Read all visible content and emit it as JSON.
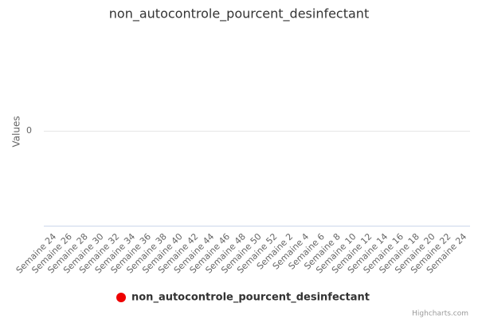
{
  "chart_data": {
    "type": "line",
    "title": "non_autocontrole_pourcent_desinfectant",
    "y_axis_label": "Values",
    "categories": [
      "Semaine 24",
      "Semaine 26",
      "Semaine 28",
      "Semaine 30",
      "Semaine 32",
      "Semaine 34",
      "Semaine 36",
      "Semaine 38",
      "Semaine 40",
      "Semaine 42",
      "Semaine 44",
      "Semaine 46",
      "Semaine 48",
      "Semaine 50",
      "Semaine 52",
      "Semaine 2",
      "Semaine 4",
      "Semaine 6",
      "Semaine 8",
      "Semaine 10",
      "Semaine 12",
      "Semaine 14",
      "Semaine 16",
      "Semaine 18",
      "Semaine 20",
      "Semaine 22",
      "Semaine 24"
    ],
    "series": [
      {
        "name": "non_autocontrole_pourcent_desinfectant",
        "color": "#ee0000",
        "values": [
          null,
          null,
          null,
          null,
          null,
          null,
          null,
          null,
          null,
          null,
          null,
          null,
          null,
          null,
          null,
          null,
          null,
          null,
          null,
          null,
          null,
          null,
          null,
          null,
          null,
          null,
          null
        ]
      }
    ],
    "ylim": [
      -1,
      1
    ],
    "yticks": [
      0
    ],
    "grid": true,
    "credits": "Highcharts.com"
  }
}
